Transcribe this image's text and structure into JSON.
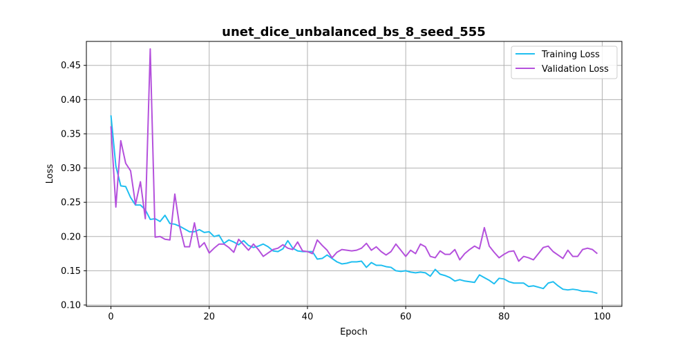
{
  "chart_data": {
    "type": "line",
    "title": "unet_dice_unbalanced_bs_8_seed_555",
    "xlabel": "Epoch",
    "ylabel": "Loss",
    "xlim": [
      -5,
      104
    ],
    "ylim": [
      0.098,
      0.485
    ],
    "xticks": [
      0,
      20,
      40,
      60,
      80,
      100
    ],
    "yticks": [
      0.1,
      0.15,
      0.2,
      0.25,
      0.3,
      0.35,
      0.4,
      0.45
    ],
    "xtick_labels": [
      "0",
      "20",
      "40",
      "60",
      "80",
      "100"
    ],
    "ytick_labels": [
      "0.10",
      "0.15",
      "0.20",
      "0.25",
      "0.30",
      "0.35",
      "0.40",
      "0.45"
    ],
    "grid": true,
    "legend_position": "top-right",
    "x": [
      0,
      1,
      2,
      3,
      4,
      5,
      6,
      7,
      8,
      9,
      10,
      11,
      12,
      13,
      14,
      15,
      16,
      17,
      18,
      19,
      20,
      21,
      22,
      23,
      24,
      25,
      26,
      27,
      28,
      29,
      30,
      31,
      32,
      33,
      34,
      35,
      36,
      37,
      38,
      39,
      40,
      41,
      42,
      43,
      44,
      45,
      46,
      47,
      48,
      49,
      50,
      51,
      52,
      53,
      54,
      55,
      56,
      57,
      58,
      59,
      60,
      61,
      62,
      63,
      64,
      65,
      66,
      67,
      68,
      69,
      70,
      71,
      72,
      73,
      74,
      75,
      76,
      77,
      78,
      79,
      80,
      81,
      82,
      83,
      84,
      85,
      86,
      87,
      88,
      89,
      90,
      91,
      92,
      93,
      94,
      95,
      96,
      97,
      98,
      99
    ],
    "series": [
      {
        "name": "Training Loss",
        "color": "#1ebef0",
        "values": [
          0.377,
          0.303,
          0.274,
          0.273,
          0.257,
          0.246,
          0.246,
          0.239,
          0.225,
          0.226,
          0.222,
          0.231,
          0.219,
          0.218,
          0.215,
          0.211,
          0.207,
          0.207,
          0.21,
          0.206,
          0.207,
          0.2,
          0.202,
          0.19,
          0.195,
          0.192,
          0.188,
          0.194,
          0.187,
          0.184,
          0.186,
          0.189,
          0.185,
          0.179,
          0.178,
          0.182,
          0.194,
          0.183,
          0.179,
          0.178,
          0.178,
          0.178,
          0.167,
          0.168,
          0.173,
          0.168,
          0.163,
          0.16,
          0.161,
          0.163,
          0.163,
          0.164,
          0.155,
          0.162,
          0.158,
          0.158,
          0.156,
          0.155,
          0.15,
          0.149,
          0.15,
          0.148,
          0.147,
          0.148,
          0.147,
          0.142,
          0.152,
          0.145,
          0.143,
          0.14,
          0.135,
          0.137,
          0.135,
          0.134,
          0.133,
          0.144,
          0.14,
          0.136,
          0.131,
          0.139,
          0.138,
          0.134,
          0.132,
          0.132,
          0.132,
          0.127,
          0.128,
          0.126,
          0.124,
          0.132,
          0.134,
          0.128,
          0.123,
          0.122,
          0.123,
          0.122,
          0.12,
          0.12,
          0.119,
          0.117
        ]
      },
      {
        "name": "Validation Loss",
        "color": "#b450dc",
        "values": [
          0.361,
          0.243,
          0.34,
          0.307,
          0.296,
          0.247,
          0.28,
          0.226,
          0.474,
          0.199,
          0.2,
          0.196,
          0.195,
          0.262,
          0.214,
          0.185,
          0.185,
          0.22,
          0.184,
          0.191,
          0.176,
          0.183,
          0.189,
          0.189,
          0.184,
          0.177,
          0.196,
          0.188,
          0.18,
          0.189,
          0.181,
          0.171,
          0.176,
          0.181,
          0.183,
          0.188,
          0.183,
          0.181,
          0.192,
          0.179,
          0.178,
          0.175,
          0.195,
          0.187,
          0.18,
          0.169,
          0.177,
          0.181,
          0.18,
          0.179,
          0.18,
          0.183,
          0.19,
          0.18,
          0.185,
          0.178,
          0.173,
          0.178,
          0.189,
          0.18,
          0.171,
          0.18,
          0.175,
          0.189,
          0.185,
          0.171,
          0.169,
          0.179,
          0.174,
          0.174,
          0.181,
          0.166,
          0.175,
          0.181,
          0.186,
          0.182,
          0.213,
          0.186,
          0.177,
          0.169,
          0.174,
          0.178,
          0.179,
          0.164,
          0.171,
          0.169,
          0.166,
          0.175,
          0.184,
          0.186,
          0.178,
          0.173,
          0.168,
          0.18,
          0.171,
          0.171,
          0.181,
          0.183,
          0.181,
          0.175
        ]
      }
    ]
  }
}
